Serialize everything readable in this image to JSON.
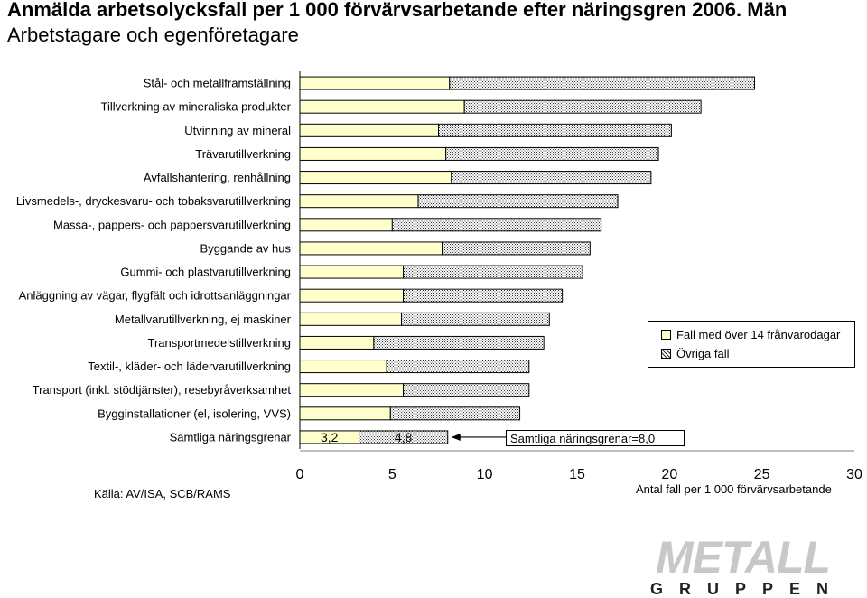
{
  "header": {
    "title": "Anmälda arbetsolycksfall per 1 000 förvärvsarbetande efter näringsgren 2006. Män",
    "subtitle": "Arbetstagare och egenföretagare"
  },
  "chart_data": {
    "type": "bar",
    "orientation": "horizontal",
    "stacked": true,
    "categories": [
      "Stål- och metallframställning",
      "Tillverkning av mineraliska produkter",
      "Utvinning av mineral",
      "Trävarutillverkning",
      "Avfallshantering, renhållning",
      "Livsmedels-, dryckesvaru- och tobaksvarutillverkning",
      "Massa-, pappers- och pappersvarutillverkning",
      "Byggande av hus",
      "Gummi- och plastvarutillverkning",
      "Anläggning av vägar, flygfält och idrottsanläggningar",
      "Metallvarutillverkning, ej maskiner",
      "Transportmedelstillverkning",
      "Textil-, kläder- och lädervarutillverkning",
      "Transport (inkl. stödtjänster), resebyråverksamhet",
      "Bygginstallationer (el, isolering, VVS)",
      "Samtliga näringsgrenar"
    ],
    "series": [
      {
        "name": "Fall med över 14 frånvarodagar",
        "color": "#ffffcc",
        "pattern": "solid",
        "values": [
          8.1,
          8.9,
          7.5,
          7.9,
          8.2,
          6.4,
          5.0,
          7.7,
          5.6,
          5.6,
          5.5,
          4.0,
          4.7,
          5.6,
          4.9,
          3.2
        ]
      },
      {
        "name": "Övriga fall",
        "color": "#ffffff",
        "pattern": "dotted",
        "values": [
          16.5,
          12.8,
          12.6,
          11.5,
          10.8,
          10.8,
          11.3,
          8.0,
          9.7,
          8.6,
          8.0,
          9.2,
          7.7,
          6.8,
          7.0,
          4.8
        ]
      }
    ],
    "data_labels": {
      "Samtliga näringsgrenar": [
        "3,2",
        "4,8"
      ]
    },
    "annotation": "Samtliga näringsgrenar=8,0",
    "xlabel": "Antal fall per 1 000 förvärvsarbetande",
    "xlim": [
      0,
      30
    ],
    "xticks": [
      "0",
      "5",
      "10",
      "15",
      "20",
      "25",
      "30"
    ],
    "legend_position": "right",
    "grid": false
  },
  "footer": {
    "source": "Källa: AV/ISA, SCB/RAMS"
  },
  "logo": {
    "main": "METALL",
    "sub": "GRUPPEN"
  }
}
